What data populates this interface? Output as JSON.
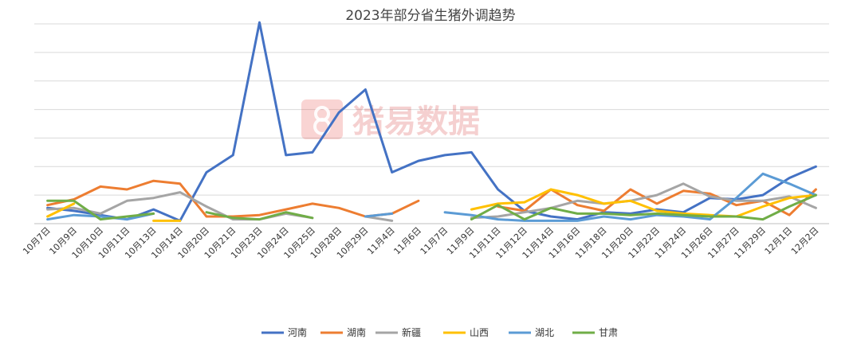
{
  "chart_data": {
    "type": "line",
    "title": "2023年部分省生猪外调趋势",
    "xlabel": "",
    "ylabel": "",
    "ylim": [
      0,
      14
    ],
    "grid": "horizontal",
    "legend_position": "bottom",
    "categories": [
      "10月7日",
      "10月9日",
      "10月10日",
      "10月11日",
      "10月13日",
      "10月14日",
      "10月20日",
      "10月21日",
      "10月23日",
      "10月24日",
      "10月25日",
      "10月28日",
      "10月29日",
      "11月4日",
      "11月6日",
      "11月7日",
      "11月9日",
      "11月11日",
      "11月12日",
      "11月14日",
      "11月16日",
      "11月18日",
      "11月20日",
      "11月22日",
      "11月24日",
      "11月26日",
      "11月27日",
      "11月29日",
      "12月1日",
      "12月2日"
    ],
    "series": [
      {
        "name": "河南",
        "color": "#4472C4",
        "values": [
          1.1,
          0.9,
          0.6,
          0.3,
          1.0,
          0.2,
          3.6,
          4.8,
          14.1,
          4.8,
          5.0,
          7.8,
          9.4,
          3.6,
          4.4,
          4.8,
          5.0,
          2.4,
          0.9,
          0.5,
          0.3,
          0.8,
          0.7,
          1.0,
          0.8,
          1.8,
          1.7,
          2.0,
          3.2,
          4.0
        ]
      },
      {
        "name": "湖南",
        "color": "#ED7D31",
        "values": [
          1.3,
          1.7,
          2.6,
          2.4,
          3.0,
          2.8,
          0.5,
          0.5,
          0.6,
          1.0,
          1.4,
          1.1,
          0.5,
          0.7,
          1.6,
          null,
          null,
          1.2,
          0.9,
          2.4,
          1.3,
          0.9,
          2.4,
          1.4,
          2.3,
          2.1,
          1.3,
          1.6,
          0.6,
          2.4
        ]
      },
      {
        "name": "新疆",
        "color": "#A5A5A5",
        "values": [
          1.0,
          1.1,
          0.7,
          1.6,
          1.8,
          2.2,
          1.2,
          0.3,
          0.3,
          0.7,
          0.4,
          null,
          0.5,
          0.2,
          null,
          null,
          0.4,
          0.5,
          0.8,
          1.1,
          1.6,
          1.4,
          1.6,
          2.0,
          2.8,
          1.9,
          1.6,
          1.6,
          1.9,
          1.1
        ]
      },
      {
        "name": "山西",
        "color": "#FFC000",
        "values": [
          0.5,
          1.4,
          null,
          null,
          0.2,
          0.2,
          null,
          null,
          null,
          null,
          null,
          null,
          null,
          null,
          null,
          null,
          1.0,
          1.4,
          1.5,
          2.4,
          2.0,
          1.4,
          1.6,
          0.9,
          0.7,
          0.6,
          0.5,
          1.2,
          1.8,
          2.0
        ]
      },
      {
        "name": "湖北",
        "color": "#5B9BD5",
        "values": [
          0.3,
          0.6,
          0.5,
          0.3,
          0.7,
          null,
          null,
          null,
          null,
          null,
          null,
          null,
          0.5,
          0.7,
          null,
          0.8,
          0.6,
          0.3,
          0.2,
          0.2,
          0.2,
          0.5,
          0.3,
          0.6,
          0.5,
          0.3,
          1.8,
          3.5,
          2.8,
          2.0
        ]
      },
      {
        "name": "甘肃",
        "color": "#70AD47",
        "values": [
          1.6,
          1.6,
          0.3,
          0.5,
          0.7,
          null,
          0.8,
          0.4,
          0.3,
          0.8,
          0.4,
          null,
          null,
          null,
          null,
          null,
          0.3,
          1.3,
          0.3,
          1.1,
          0.7,
          0.7,
          0.6,
          0.7,
          0.6,
          0.5,
          0.5,
          0.3,
          1.2,
          2.0
        ]
      }
    ]
  },
  "watermark": {
    "text": "猪易数据",
    "icon": "logo-icon"
  }
}
